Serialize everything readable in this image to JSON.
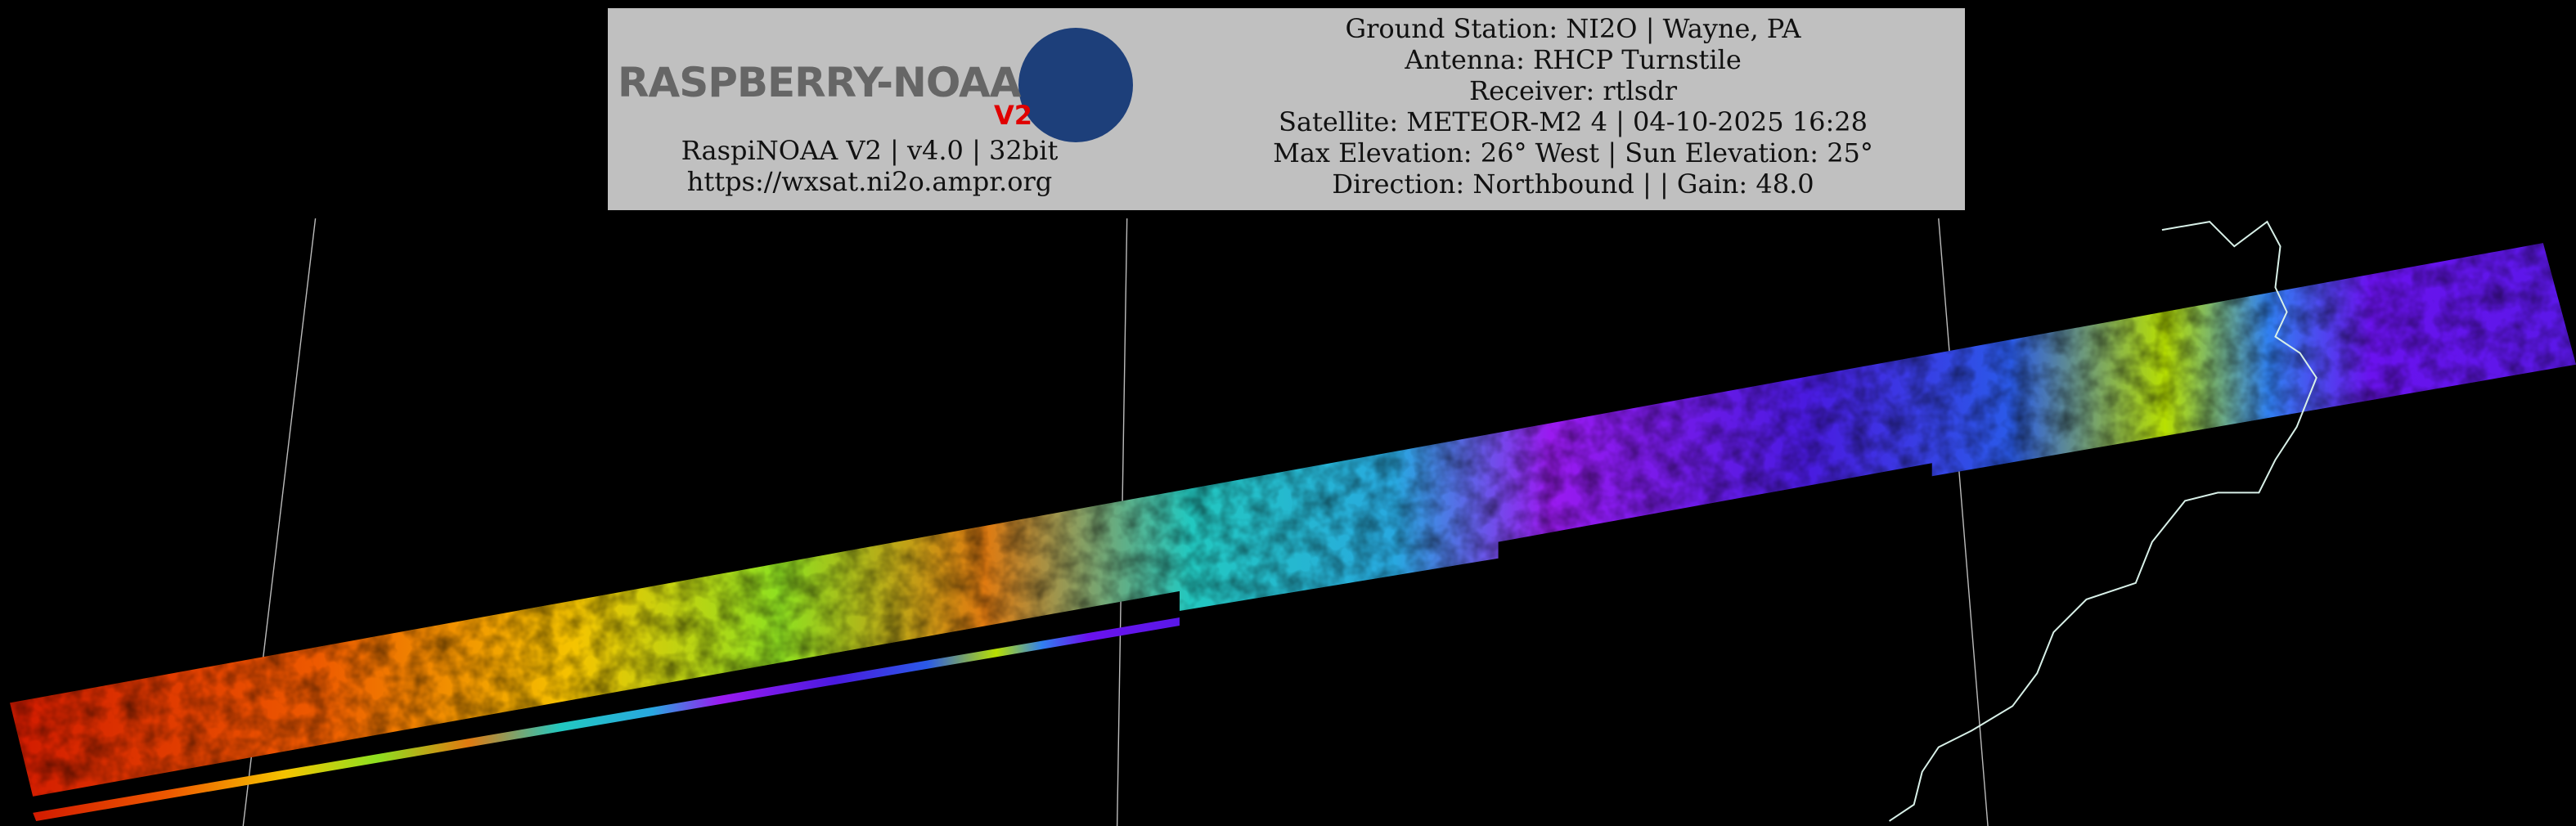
{
  "header": {
    "logo": "RASPBERRY-NOAA",
    "logo_version": "V2",
    "left_lines": [
      "RaspiNOAA V2 | v4.0 | 32bit",
      "https://wxsat.ni2o.ampr.org"
    ],
    "right_lines": [
      "Ground Station: NI2O | Wayne, PA",
      "Antenna: RHCP Turnstile",
      "Receiver: rtlsdr",
      "Satellite: METEOR-M2 4 | 04-10-2025 16:28",
      "Max Elevation: 26° West | Sun Elevation: 25°",
      "Direction: Northbound | | Gain: 48.0"
    ]
  }
}
